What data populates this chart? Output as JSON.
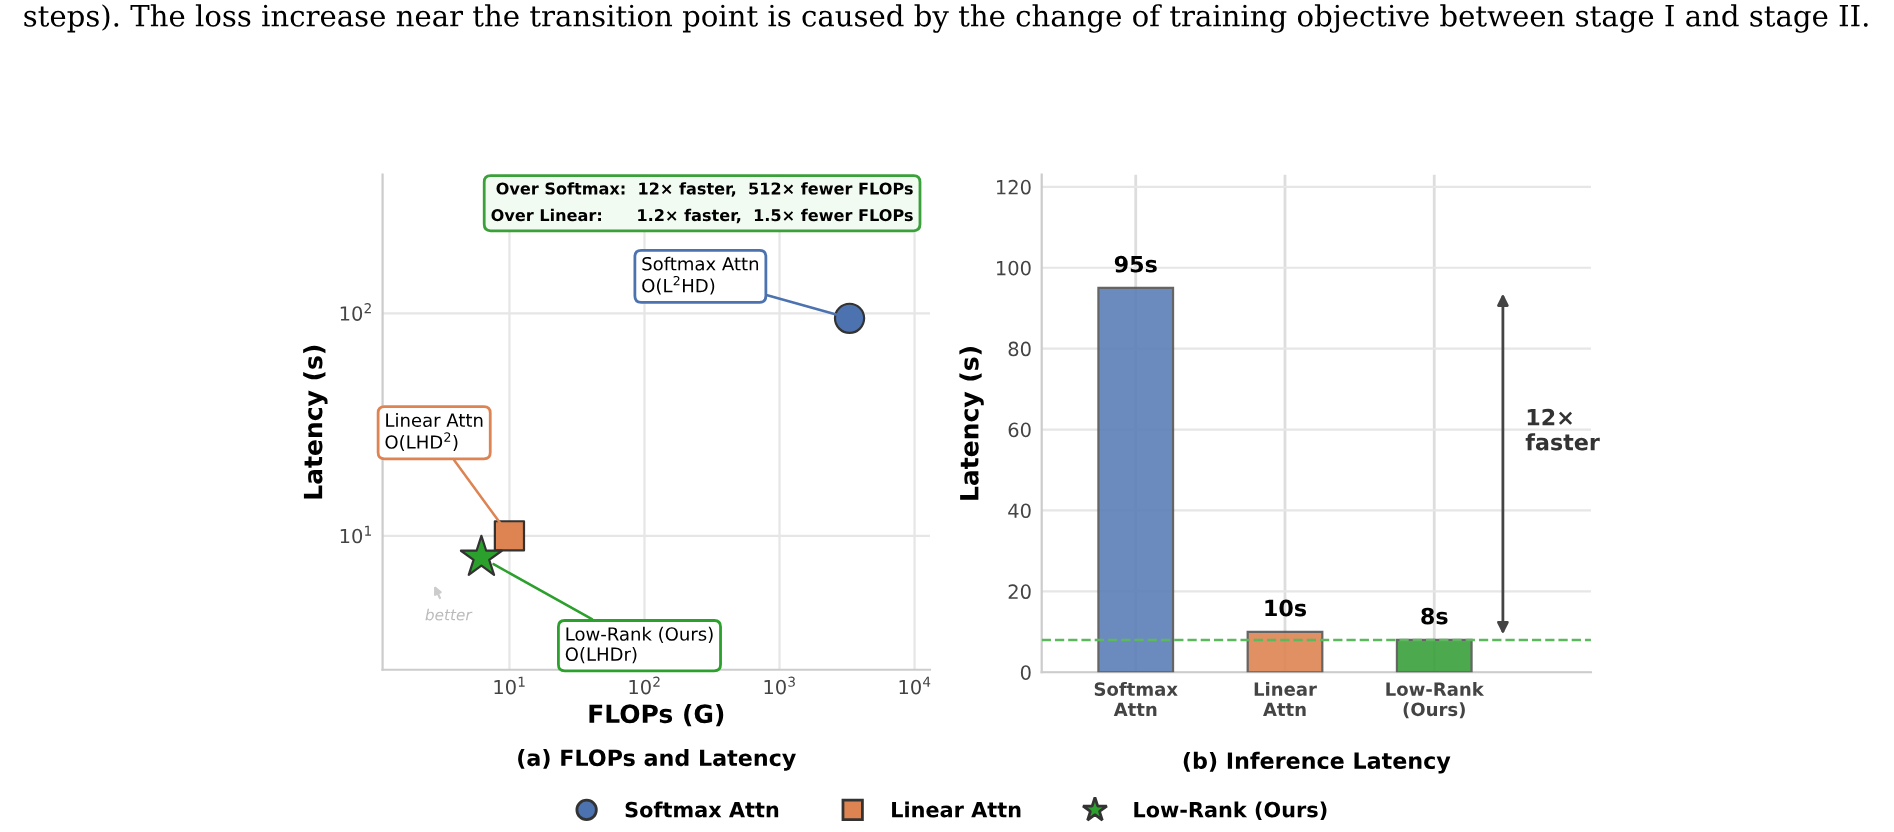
{
  "chart_data": [
    {
      "type": "scatter",
      "title": "(a) FLOPs and Latency",
      "xlabel": "FLOPs (G)",
      "ylabel": "Latency (s)",
      "log": "xy",
      "grid": true,
      "legend": "bottom",
      "xlim": [
        1.15,
        13000
      ],
      "ylim": [
        2.5,
        420
      ],
      "xticks": [
        {
          "value": 10,
          "label": "10$^{1}$"
        },
        {
          "value": 100,
          "label": "10$^{2}$"
        },
        {
          "value": 1000,
          "label": "10$^{3}$"
        },
        {
          "value": 10000,
          "label": "10$^{4}$"
        }
      ],
      "yticks": [
        {
          "value": 10,
          "label": "10$^{1}$"
        },
        {
          "value": 100,
          "label": "10$^{2}$"
        }
      ],
      "series": [
        {
          "name": "Softmax Attn",
          "color": "#4c72b0",
          "marker": "circle",
          "x": [
            3300
          ],
          "values": [
            95
          ]
        },
        {
          "name": "Linear Attn",
          "color": "#dd8452",
          "marker": "square",
          "x": [
            10
          ],
          "values": [
            10
          ]
        },
        {
          "name": "Low-Rank (Ours)",
          "color": "#2ca02c",
          "marker": "star",
          "x": [
            6.2
          ],
          "values": [
            8
          ]
        }
      ],
      "annotations": [
        "steps). The loss increase near the transition point is caused by the change of training objective between stage I and stage II.",
        {
          "text": "Softmax Attn\nO(L$^{2}$HD)",
          "x": 3300,
          "y": 95
        },
        {
          "text": "Linear Attn\nO(LHD$^{2}$)",
          "x": 10,
          "y": 10
        },
        {
          "text": "Low-Rank (Ours)\nO(LHDr)",
          "x": 6.2,
          "y": 8
        },
        "Over Softmax:  12× faster,  512× fewer FLOPs\nOver Linear:      1.2× faster,  1.5× fewer FLOPs",
        "better"
      ]
    },
    {
      "type": "bar",
      "title": "(b) Inference Latency",
      "ylabel": "Latency (s)",
      "grid": true,
      "categories": [
        "Softmax\nAttn",
        "Linear\nAttn",
        "Low-Rank\n(Ours)"
      ],
      "values": [
        95,
        10,
        8
      ],
      "colors": [
        "#5b7fb8",
        "#dd8452",
        "#3aa03a"
      ],
      "value_labels": [
        "95s",
        "10s",
        "8s"
      ],
      "ylim": [
        0,
        123
      ],
      "yticks": [
        0,
        20,
        40,
        60,
        80,
        100,
        120
      ],
      "ref_lines": [
        {
          "axis": "y",
          "value": 8,
          "color": "#5cb85c",
          "line_style": "dashed"
        }
      ],
      "annotations": [
        "12×\nfaster"
      ]
    }
  ]
}
